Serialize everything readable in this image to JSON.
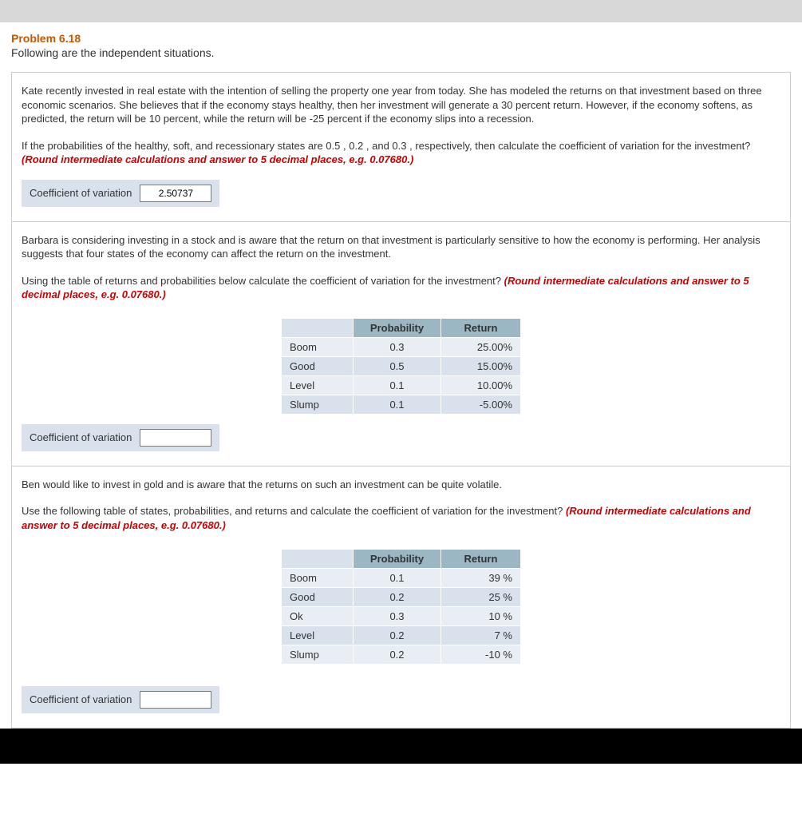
{
  "header": {
    "problem_label": "Problem 6.18",
    "problem_intro": "Following are the independent situations."
  },
  "hint_text": "(Round intermediate calculations and answer to 5 decimal places, e.g. 0.07680.)",
  "section1": {
    "para1": "Kate recently invested in real estate with the intention of selling the property one year from today. She has modeled the returns on that investment based on three economic scenarios. She believes that if the economy stays healthy, then her investment will generate a 30 percent return. However, if the economy softens, as predicted, the return will be 10 percent, while the return will be -25 percent if the economy slips into a recession.",
    "para2_pre": "If the probabilities of the healthy, soft, and recessionary states are 0.5 , 0.2 , and 0.3 , respectively, then calculate the coefficient of variation for the investment? ",
    "input_label": "Coefficient of variation",
    "input_value": "2.50737"
  },
  "section2": {
    "para1": "Barbara is considering investing in a stock and is aware that the return on that investment is particularly sensitive to how the economy is performing. Her analysis suggests that four states of the economy can affect the return on the investment.",
    "para2_pre": "Using the table of returns and probabilities below calculate the coefficient of variation for the investment? ",
    "table": {
      "headers": {
        "prob": "Probability",
        "ret": "Return"
      },
      "rows": [
        {
          "state": "Boom",
          "prob": "0.3",
          "ret": "25.00%"
        },
        {
          "state": "Good",
          "prob": "0.5",
          "ret": "15.00%"
        },
        {
          "state": "Level",
          "prob": "0.1",
          "ret": "10.00%"
        },
        {
          "state": "Slump",
          "prob": "0.1",
          "ret": "-5.00%"
        }
      ]
    },
    "input_label": "Coefficient of variation",
    "input_value": ""
  },
  "section3": {
    "para1": "Ben would like to invest in gold and is aware that the returns on such an investment can be quite volatile.",
    "para2_pre": "Use the following table of states, probabilities, and returns and calculate the coefficient of variation for the investment? ",
    "table": {
      "headers": {
        "prob": "Probability",
        "ret": "Return"
      },
      "rows": [
        {
          "state": "Boom",
          "prob": "0.1",
          "ret": "39 %"
        },
        {
          "state": "Good",
          "prob": "0.2",
          "ret": "25 %"
        },
        {
          "state": "Ok",
          "prob": "0.3",
          "ret": "10 %"
        },
        {
          "state": "Level",
          "prob": "0.2",
          "ret": "7 %"
        },
        {
          "state": "Slump",
          "prob": "0.2",
          "ret": "-10 %"
        }
      ]
    },
    "input_label": "Coefficient of variation",
    "input_value": ""
  },
  "colors": {
    "accent_orange": "#cc5500",
    "hint_red": "#cc0000",
    "table_header_bg": "#9bb7c4",
    "row_bg_light": "#e8eef3",
    "row_bg_alt": "#d9e2ec",
    "section_border": "#cccccc",
    "topbar_bg": "#d8d8d8"
  }
}
